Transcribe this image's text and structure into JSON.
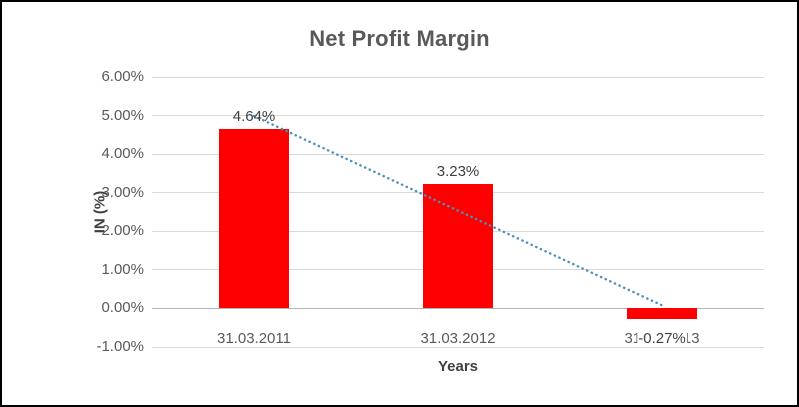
{
  "chart_data": {
    "type": "bar",
    "title": "Net Profit Margin",
    "xlabel": "Years",
    "ylabel": "IN (%)",
    "categories": [
      "31.03.2011",
      "31.03.2012",
      "31.03.2013"
    ],
    "values": [
      4.64,
      3.23,
      -0.27
    ],
    "labels": [
      "4.64%",
      "3.23%",
      "-0.27%"
    ],
    "bar_color": "#FF0000",
    "ylim": [
      -1,
      6
    ],
    "ytick_values": [
      6,
      5,
      4,
      3,
      2,
      1,
      0,
      -1
    ],
    "grid": true,
    "legend": "none",
    "trendline": {
      "color": "#4A90C2",
      "style": "dotted",
      "endpoint_values": [
        4.99,
        0.08
      ]
    }
  }
}
